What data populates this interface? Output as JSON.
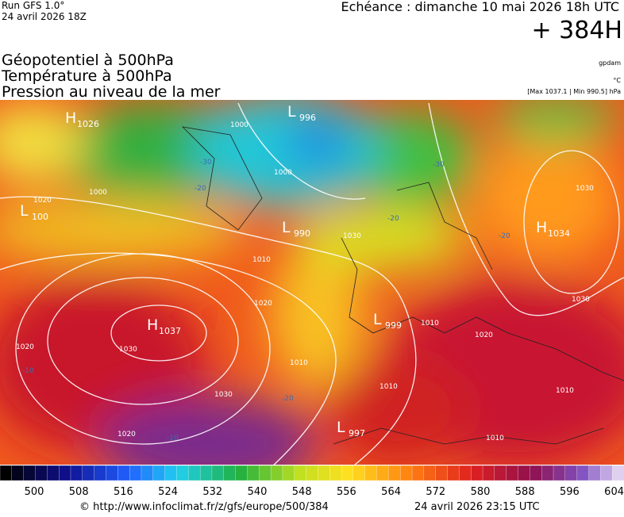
{
  "header": {
    "run": "Run GFS 1.0°",
    "run_date": "24 avril 2026 18Z",
    "valid": "Echéance : dimanche 10 mai 2026 18h UTC",
    "lead": "+ 384H",
    "fields": [
      "Géopotentiel à 500hPa",
      "Température à 500hPa",
      "Pression au niveau de la mer"
    ],
    "units": [
      "gpdam",
      "°C",
      "[Max 1037.1 | Min 990.5] hPa"
    ]
  },
  "map": {
    "centers": [
      {
        "letter": "H",
        "value": "1026"
      },
      {
        "letter": "L",
        "value": "996"
      },
      {
        "letter": "L",
        "value": "100"
      },
      {
        "letter": "L",
        "value": "990"
      },
      {
        "letter": "H",
        "value": "1034"
      },
      {
        "letter": "H",
        "value": "1037"
      },
      {
        "letter": "L",
        "value": "999"
      },
      {
        "letter": "L",
        "value": "997"
      }
    ],
    "isobar_labels": [
      "1000",
      "1000",
      "1000",
      "1030",
      "1010",
      "1020",
      "1030",
      "1020",
      "1030",
      "1020",
      "1010",
      "1010",
      "1010",
      "1020",
      "1030",
      "1010",
      "1030",
      "1020",
      "1010"
    ],
    "temperature_labels": [
      "-30",
      "-30",
      "-20",
      "-20",
      "-20",
      "-10",
      "-10",
      "-20"
    ]
  },
  "colorbar": {
    "labels": [
      "500",
      "508",
      "516",
      "524",
      "532",
      "540",
      "548",
      "556",
      "564",
      "572",
      "580",
      "588",
      "596",
      "604"
    ]
  },
  "footer": {
    "source": "© http://www.infoclimat.fr/z/gfs/europe/500/384",
    "issued": "24 avril 2026 23:15 UTC"
  }
}
